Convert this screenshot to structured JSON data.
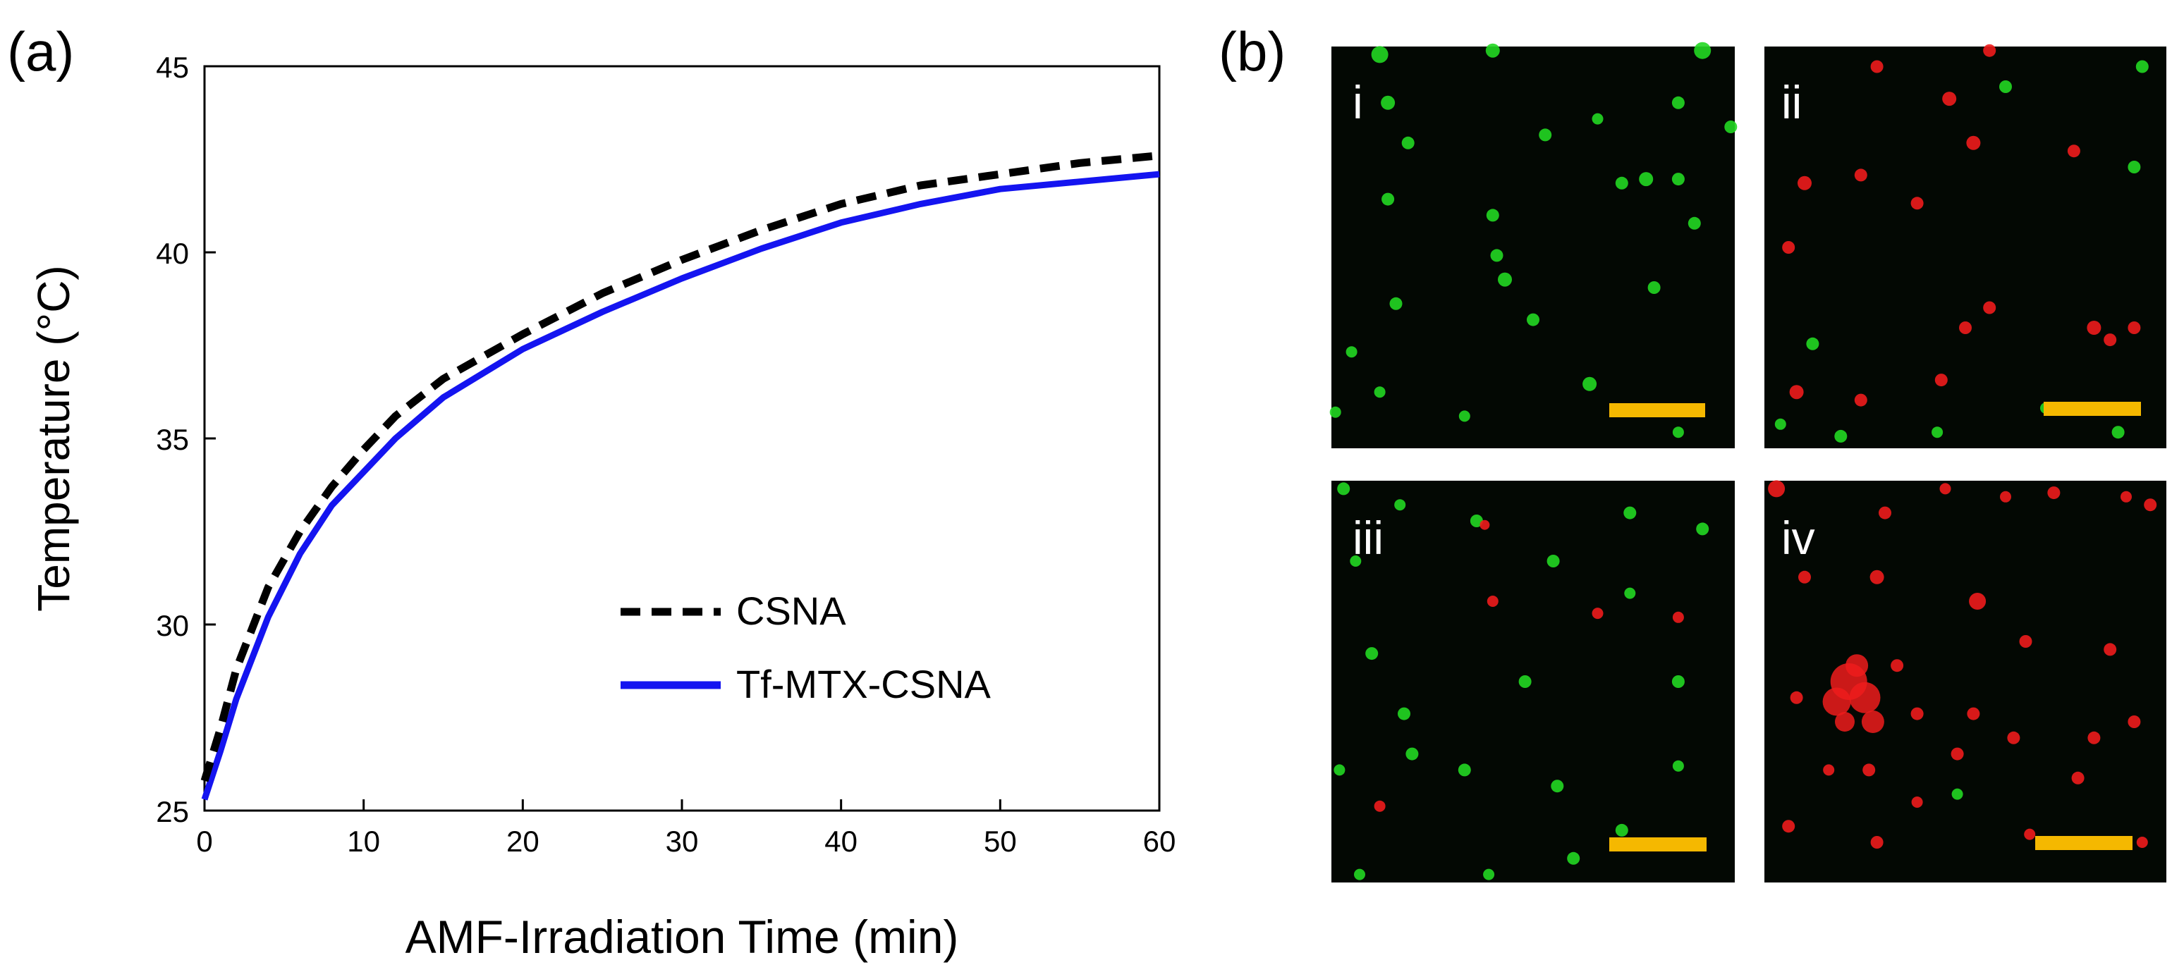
{
  "figure": {
    "panel_a_label": "(a)",
    "panel_b_label": "(b)",
    "micrograph_labels": [
      "i",
      "ii",
      "iii",
      "iv"
    ],
    "scale_bar_color": "#f5b800",
    "green_dot_color": "#22d822",
    "red_dot_color": "#ee1c1c",
    "micrograph_bg": "#030803"
  },
  "chart_data": {
    "type": "line",
    "title": "",
    "xlabel": "AMF-Irradiation Time (min)",
    "ylabel": "Temperature (°C)",
    "xlim": [
      0,
      60
    ],
    "ylim": [
      25,
      45
    ],
    "xticks": [
      0,
      10,
      20,
      30,
      40,
      50,
      60
    ],
    "yticks": [
      25,
      30,
      35,
      40,
      45
    ],
    "grid": false,
    "legend_position": "center-right",
    "series": [
      {
        "name": "CSNA",
        "style": "dashed",
        "color": "#000000",
        "x": [
          0,
          1,
          2,
          4,
          6,
          8,
          10,
          12,
          15,
          20,
          25,
          30,
          35,
          40,
          45,
          50,
          55,
          60
        ],
        "y": [
          25.8,
          27.2,
          28.8,
          31.0,
          32.5,
          33.7,
          34.7,
          35.6,
          36.6,
          37.8,
          38.9,
          39.8,
          40.6,
          41.3,
          41.8,
          42.1,
          42.4,
          42.6
        ]
      },
      {
        "name": "Tf-MTX-CSNA",
        "style": "solid",
        "color": "#1414f0",
        "x": [
          0,
          1,
          2,
          4,
          6,
          8,
          10,
          12,
          15,
          20,
          25,
          30,
          35,
          40,
          45,
          50,
          55,
          60
        ],
        "y": [
          25.3,
          26.6,
          28.0,
          30.2,
          31.9,
          33.2,
          34.1,
          35.0,
          36.1,
          37.4,
          38.4,
          39.3,
          40.1,
          40.8,
          41.3,
          41.7,
          41.9,
          42.1
        ]
      }
    ]
  }
}
